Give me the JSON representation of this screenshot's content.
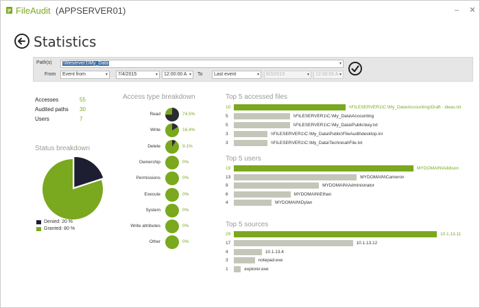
{
  "window": {
    "app_name": "FileAudit",
    "server": "(APPSERVER01)",
    "controls": [
      "–",
      "✕"
    ]
  },
  "header": {
    "title": "Statistics"
  },
  "filter": {
    "path_label": "Path(s)",
    "path_value": "\\\\fileserver1\\My_Data",
    "from_label": "From",
    "from_type": "Event from",
    "from_date": "7/4/2015",
    "from_time": "12:00:00 A",
    "to_label": "To",
    "to_type": "Last event",
    "to_date": "8/3/2015",
    "to_time": "12:00:00 A",
    "dropdown_glyph": "▾"
  },
  "summary": [
    {
      "label": "Accesses",
      "value": "55"
    },
    {
      "label": "Audited paths",
      "value": "30"
    },
    {
      "label": "Users",
      "value": "7"
    }
  ],
  "status_breakdown": {
    "title": "Status breakdown",
    "items": [
      {
        "label": "Denied: 20 %",
        "value": 20,
        "color": "#1e1e32"
      },
      {
        "label": "Granted: 80 %",
        "value": 80,
        "color": "#7aa81e"
      }
    ]
  },
  "access_breakdown": {
    "title": "Access type breakdown",
    "items": [
      {
        "label": "Read",
        "pct": "74.5%",
        "value": 0.745
      },
      {
        "label": "Write",
        "pct": "16.4%",
        "value": 0.164
      },
      {
        "label": "Delete",
        "pct": "9.1%",
        "value": 0.091
      },
      {
        "label": "Ownership",
        "pct": "0%",
        "value": 0
      },
      {
        "label": "Permissions",
        "pct": "0%",
        "value": 0
      },
      {
        "label": "Execute",
        "pct": "0%",
        "value": 0
      },
      {
        "label": "System",
        "pct": "0%",
        "value": 0
      },
      {
        "label": "Write attributes",
        "pct": "0%",
        "value": 0
      },
      {
        "label": "Other",
        "pct": "0%",
        "value": 0
      }
    ],
    "colors": {
      "dark": "#2b2b36",
      "green": "#7aa81e"
    }
  },
  "top_files": {
    "title": "Top 5 accessed files",
    "max": 10,
    "rows": [
      {
        "count": "10",
        "value": 10,
        "label": "\\\\FILESERVER1\\C:\\My_Data\\Accounting\\Draft - ideas.txt"
      },
      {
        "count": "5",
        "value": 5,
        "label": "\\\\FILESERVER1\\C:\\My_Data\\Accounting"
      },
      {
        "count": "5",
        "value": 5,
        "label": "\\\\FILESERVER1\\C:\\My_Data\\Public\\key.txt"
      },
      {
        "count": "3",
        "value": 3,
        "label": "\\\\FILESERVER1\\C:\\My_Data\\Public\\FileAudit\\desktop.ini"
      },
      {
        "count": "3",
        "value": 3,
        "label": "\\\\FILESERVER1\\C:\\My_Data\\Technical\\File.txt"
      }
    ]
  },
  "top_users": {
    "title": "Top 5 users",
    "max": 19,
    "rows": [
      {
        "count": "19",
        "value": 19,
        "label": "MYDOMAIN\\Addison"
      },
      {
        "count": "13",
        "value": 13,
        "label": "MYDOMAIN\\Cameron"
      },
      {
        "count": "9",
        "value": 9,
        "label": "MYDOMAIN\\Administrator"
      },
      {
        "count": "6",
        "value": 6,
        "label": "MYDOMAIN\\Ethan"
      },
      {
        "count": "4",
        "value": 4,
        "label": "MYDOMAIN\\Dylan"
      }
    ]
  },
  "top_sources": {
    "title": "Top 5 sources",
    "max": 29,
    "rows": [
      {
        "count": "29",
        "value": 29,
        "label": "10.1.13.11"
      },
      {
        "count": "17",
        "value": 17,
        "label": "10.1.13.12"
      },
      {
        "count": "4",
        "value": 4,
        "label": "10.1.13.4"
      },
      {
        "count": "3",
        "value": 3,
        "label": "notepad.exe"
      },
      {
        "count": "1",
        "value": 1,
        "label": "explorer.exe"
      }
    ]
  }
}
